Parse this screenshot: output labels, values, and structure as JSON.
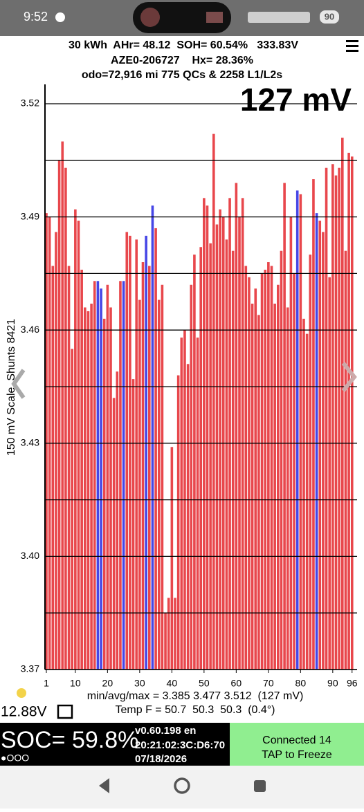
{
  "status_bar": {
    "time": "9:52",
    "battery": "90"
  },
  "header": {
    "line1": "30 kWh  AHr= 48.12  SOH= 60.54%   333.83V",
    "line2": "AZE0-206727    Hx= 28.36%",
    "line3": "odo=72,916 mi 775 QCs & 2258 L1/L2s"
  },
  "chart_data": {
    "type": "bar",
    "annotation": "127 mV",
    "y_label": "150 mV Scale  Shunts 8421",
    "categories": [
      1,
      null,
      null,
      null,
      null,
      null,
      null,
      null,
      null,
      10,
      null,
      null,
      null,
      null,
      null,
      null,
      null,
      null,
      null,
      20,
      null,
      null,
      null,
      null,
      null,
      null,
      null,
      null,
      null,
      30,
      null,
      null,
      null,
      null,
      null,
      null,
      null,
      null,
      null,
      40,
      null,
      null,
      null,
      null,
      null,
      null,
      null,
      null,
      null,
      50,
      null,
      null,
      null,
      null,
      null,
      null,
      null,
      null,
      null,
      60,
      null,
      null,
      null,
      null,
      null,
      null,
      null,
      null,
      null,
      70,
      null,
      null,
      null,
      null,
      null,
      null,
      null,
      null,
      null,
      80,
      null,
      null,
      null,
      null,
      null,
      null,
      null,
      null,
      null,
      90,
      null,
      null,
      null,
      null,
      null,
      96
    ],
    "values": [
      3.491,
      3.49,
      3.477,
      3.486,
      3.505,
      3.51,
      3.503,
      3.477,
      3.455,
      3.492,
      3.489,
      3.476,
      3.466,
      3.465,
      3.467,
      3.473,
      3.473,
      3.471,
      3.463,
      3.472,
      3.466,
      3.442,
      3.449,
      3.473,
      3.473,
      3.486,
      3.485,
      3.447,
      3.484,
      3.468,
      3.478,
      3.485,
      3.477,
      3.493,
      3.487,
      3.468,
      3.472,
      3.385,
      3.389,
      3.429,
      3.389,
      3.448,
      3.458,
      3.46,
      3.451,
      3.472,
      3.48,
      3.458,
      3.482,
      3.495,
      3.493,
      3.483,
      3.512,
      3.488,
      3.492,
      3.49,
      3.484,
      3.495,
      3.481,
      3.499,
      3.49,
      3.495,
      3.477,
      3.474,
      3.467,
      3.471,
      3.464,
      3.475,
      3.476,
      3.478,
      3.477,
      3.467,
      3.472,
      3.481,
      3.499,
      3.466,
      3.49,
      3.475,
      3.497,
      3.496,
      3.463,
      3.459,
      3.48,
      3.5,
      3.491,
      3.489,
      3.486,
      3.503,
      3.474,
      3.504,
      3.501,
      3.503,
      3.511,
      3.481,
      3.507,
      3.506
    ],
    "colors": [
      "#e8474c",
      "#e8474c",
      "#e8474c",
      "#e8474c",
      "#e8474c",
      "#e8474c",
      "#e8474c",
      "#e8474c",
      "#e8474c",
      "#e8474c",
      "#e8474c",
      "#e8474c",
      "#e8474c",
      "#e8474c",
      "#e8474c",
      "#e8474c",
      "#4646e6",
      "#4646e6",
      "#e8474c",
      "#e8474c",
      "#e8474c",
      "#e8474c",
      "#e8474c",
      "#e8474c",
      "#4646e6",
      "#e8474c",
      "#e8474c",
      "#e8474c",
      "#e8474c",
      "#e8474c",
      "#e8474c",
      "#4646e6",
      "#e8474c",
      "#4646e6",
      "#e8474c",
      "#e8474c",
      "#e8474c",
      "#e8474c",
      "#e8474c",
      "#e8474c",
      "#e8474c",
      "#e8474c",
      "#e8474c",
      "#e8474c",
      "#e8474c",
      "#e8474c",
      "#e8474c",
      "#e8474c",
      "#e8474c",
      "#e8474c",
      "#e8474c",
      "#e8474c",
      "#e8474c",
      "#e8474c",
      "#e8474c",
      "#e8474c",
      "#e8474c",
      "#e8474c",
      "#e8474c",
      "#e8474c",
      "#e8474c",
      "#e8474c",
      "#e8474c",
      "#e8474c",
      "#e8474c",
      "#e8474c",
      "#e8474c",
      "#e8474c",
      "#e8474c",
      "#e8474c",
      "#e8474c",
      "#e8474c",
      "#e8474c",
      "#e8474c",
      "#e8474c",
      "#e8474c",
      "#e8474c",
      "#e8474c",
      "#4646e6",
      "#e8474c",
      "#e8474c",
      "#e8474c",
      "#e8474c",
      "#e8474c",
      "#4646e6",
      "#e8474c",
      "#e8474c",
      "#e8474c",
      "#e8474c",
      "#e8474c",
      "#e8474c",
      "#e8474c",
      "#e8474c",
      "#e8474c",
      "#e8474c",
      "#e8474c"
    ],
    "ylim": [
      3.37,
      3.52
    ],
    "yticks": [
      3.37,
      {
        "value": 3.4,
        "label": "3.40"
      },
      3.43,
      3.46,
      3.49,
      3.52
    ],
    "grid_lines": [
      3.385,
      3.415,
      3.445,
      3.475,
      3.505
    ]
  },
  "footer": {
    "stats": "min/avg/max = 3.385 3.477 3.512  (127 mV)",
    "temp": "Temp F = 50.7  50.3  50.3  (0.4°)",
    "voltage": "12.88V",
    "soc": "SOC= 59.8%",
    "indicator": "●OOO",
    "version": "v0.60.198 en",
    "mac": "20:21:02:3C:D6:70",
    "date": "07/18/2026",
    "connected": "Connected 14",
    "tap": "TAP to Freeze"
  }
}
